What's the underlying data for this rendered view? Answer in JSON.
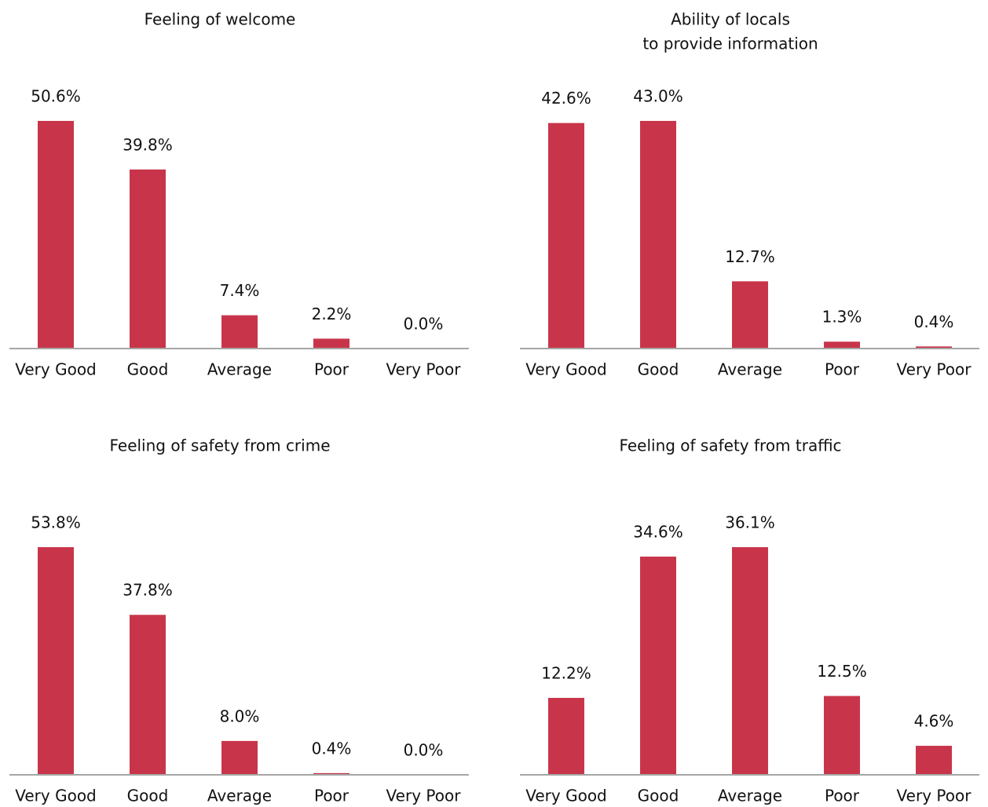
{
  "chart_data": [
    {
      "type": "bar",
      "title": [
        "Feeling of welcome"
      ],
      "categories": [
        "Very Good",
        "Good",
        "Average",
        "Poor",
        "Very Poor"
      ],
      "values": [
        50.6,
        39.8,
        7.4,
        2.2,
        0.0
      ],
      "value_labels": [
        "50.6%",
        "39.8%",
        "7.4%",
        "2.2%",
        "0.0%"
      ],
      "color": "#c8354b"
    },
    {
      "type": "bar",
      "title": [
        "Ability of locals",
        "to provide information"
      ],
      "categories": [
        "Very Good",
        "Good",
        "Average",
        "Poor",
        "Very Poor"
      ],
      "values": [
        42.6,
        43.0,
        12.7,
        1.3,
        0.4
      ],
      "value_labels": [
        "42.6%",
        "43.0%",
        "12.7%",
        "1.3%",
        "0.4%"
      ],
      "color": "#c8354b"
    },
    {
      "type": "bar",
      "title": [
        "Feeling of safety from crime"
      ],
      "categories": [
        "Very Good",
        "Good",
        "Average",
        "Poor",
        "Very Poor"
      ],
      "values": [
        53.8,
        37.8,
        8.0,
        0.4,
        0.0
      ],
      "value_labels": [
        "53.8%",
        "37.8%",
        "8.0%",
        "0.4%",
        "0.0%"
      ],
      "color": "#c8354b"
    },
    {
      "type": "bar",
      "title": [
        "Feeling of safety from traffic"
      ],
      "categories": [
        "Very Good",
        "Good",
        "Average",
        "Poor",
        "Very Poor"
      ],
      "values": [
        12.2,
        34.6,
        36.1,
        12.5,
        4.6
      ],
      "value_labels": [
        "12.2%",
        "34.6%",
        "36.1%",
        "12.5%",
        "4.6%"
      ],
      "color": "#c8354b"
    }
  ]
}
